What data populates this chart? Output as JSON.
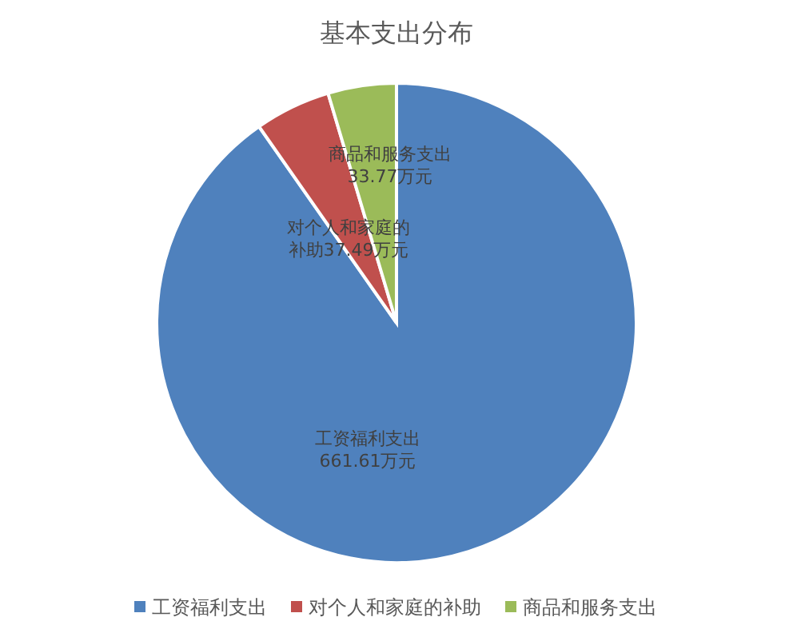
{
  "chart_data": {
    "type": "pie",
    "title": "基本支出分布",
    "categories": [
      "工资福利支出",
      "对个人和家庭的补助",
      "商品和服务支出"
    ],
    "values": [
      661.61,
      37.49,
      33.77
    ],
    "colors": [
      "#4f81bd",
      "#c0504d",
      "#9bbb59"
    ],
    "value_labels": [
      "工资福利支出661.61万元",
      "对个人和家庭的补助37.49万元",
      "商品和服务支出33.77万元"
    ],
    "legend": "bottom"
  }
}
